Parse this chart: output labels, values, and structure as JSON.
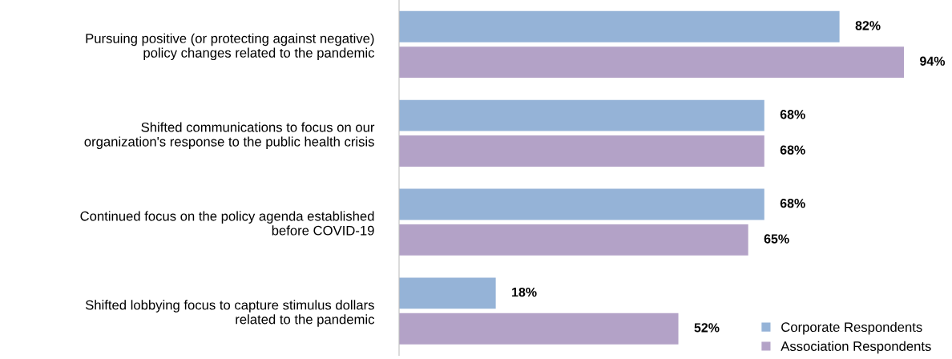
{
  "chart_data": {
    "type": "bar",
    "orientation": "horizontal",
    "categories": [
      "Pursuing positive (or protecting against negative)\npolicy changes related to the pandemic",
      "Shifted communications to focus on our\norganization's response to the public health crisis",
      "Continued focus on the policy agenda established\nbefore COVID-19",
      "Shifted lobbying focus to capture stimulus dollars\nrelated to the pandemic"
    ],
    "series": [
      {
        "name": "Corporate Respondents",
        "color": "#95b3d7",
        "values": [
          82,
          68,
          68,
          18
        ],
        "value_labels": [
          "82%",
          "68%",
          "68%",
          "18%"
        ]
      },
      {
        "name": "Association Respondents",
        "color": "#b3a2c7",
        "values": [
          94,
          68,
          65,
          52
        ],
        "value_labels": [
          "94%",
          "68%",
          "65%",
          "52%"
        ]
      }
    ],
    "tick_labels": "y",
    "grid": false,
    "legend": "bottom right",
    "marker": "square"
  }
}
